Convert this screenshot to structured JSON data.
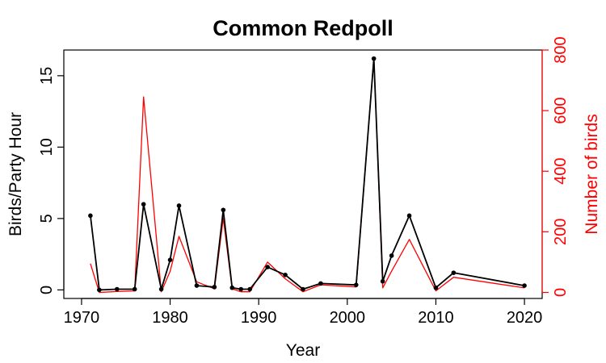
{
  "chart_data": {
    "type": "line",
    "title": "Common Redpoll",
    "xlabel": "Year",
    "ylabel": "Birds/Party Hour",
    "y2label": "Number of birds",
    "xlim": [
      1968,
      2022
    ],
    "ylim": [
      -0.6,
      16.8
    ],
    "y2lim": [
      -20,
      800
    ],
    "x_ticks": [
      1970,
      1980,
      1990,
      2000,
      2010,
      2020
    ],
    "y_ticks": [
      0,
      5,
      10,
      15
    ],
    "y2_ticks": [
      0,
      200,
      400,
      600,
      800
    ],
    "colors": {
      "primary": "#000000",
      "secondary": "#ff0000"
    },
    "series": [
      {
        "axis": "left",
        "color": "#000000",
        "markers": true,
        "x": [
          1971,
          1972,
          1974,
          1976,
          1977,
          1979,
          1980,
          1981,
          1983,
          1985,
          1986,
          1987,
          1988,
          1989,
          1991,
          1993,
          1995,
          1997,
          2001,
          2003,
          2004,
          2005,
          2007,
          2010,
          2012,
          2020
        ],
        "y": [
          5.2,
          0.0,
          0.05,
          0.05,
          6.0,
          0.05,
          2.1,
          5.9,
          0.3,
          0.2,
          5.6,
          0.15,
          0.05,
          0.05,
          1.6,
          1.05,
          0.05,
          0.45,
          0.35,
          16.2,
          0.6,
          2.4,
          5.2,
          0.15,
          1.2,
          0.3
        ]
      },
      {
        "axis": "right",
        "color": "#ff0000",
        "markers": false,
        "x": [
          1971,
          1972,
          1974,
          1976,
          1977,
          1979,
          1980,
          1981,
          1983,
          1985,
          1986,
          1987,
          1988,
          1989,
          1991,
          1993,
          1995,
          1997,
          2001,
          2003,
          2004,
          2005,
          2007,
          2010,
          2012,
          2020
        ],
        "y": [
          95,
          0,
          3,
          5,
          645,
          2,
          70,
          185,
          35,
          12,
          245,
          12,
          2,
          2,
          100,
          45,
          2,
          25,
          18,
          775,
          15,
          70,
          175,
          5,
          50,
          15
        ]
      }
    ]
  }
}
